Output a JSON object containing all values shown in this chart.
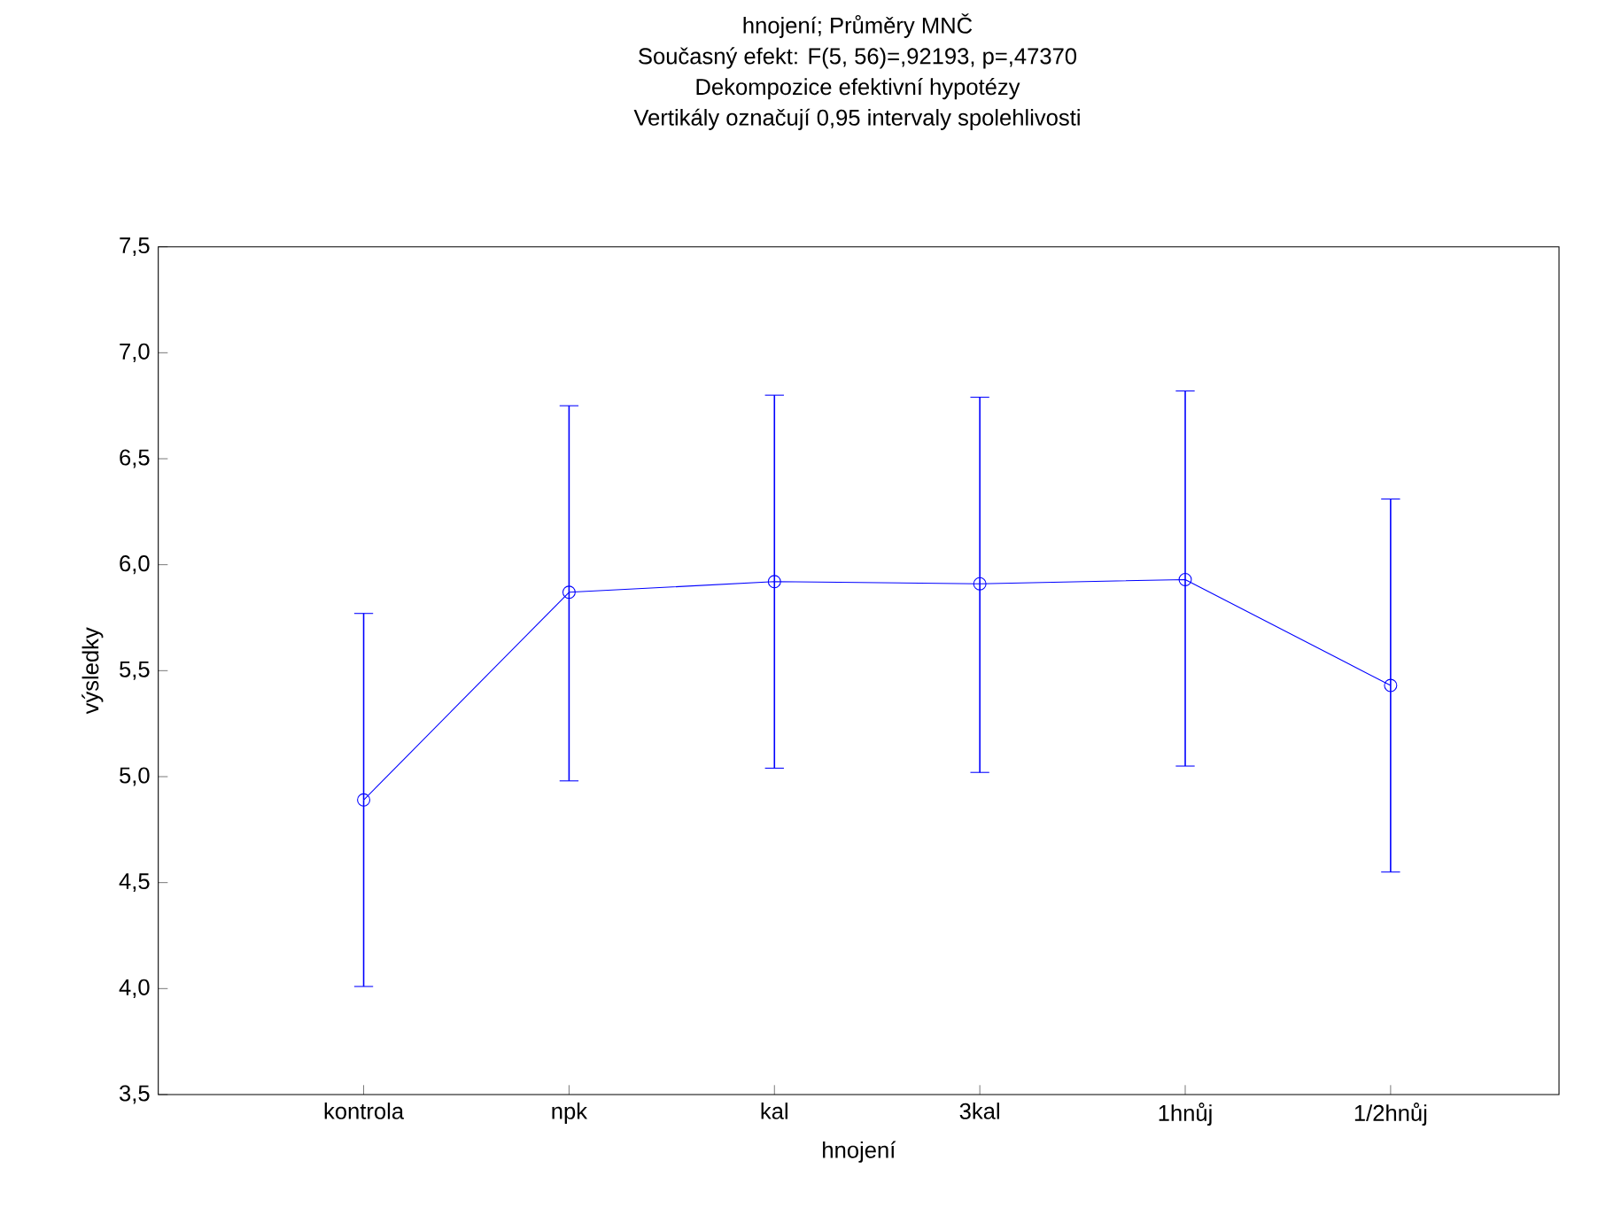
{
  "chart_data": {
    "type": "line",
    "title": "hnojení; Průměry MNČ",
    "subtitle": "Současný efekt: F(5, 56)=,92193, p=,47370",
    "annotations": [
      "Dekompozice efektivní hypotézy",
      "Vertikály označují 0,95 intervaly spolehlivosti"
    ],
    "xlabel": "hnojení",
    "ylabel": "výsledky",
    "categories": [
      "kontrola",
      "npk",
      "kal",
      "3kal",
      "1hnůj",
      "1/2hnůj"
    ],
    "series": [
      {
        "color": "#0000ff",
        "values": [
          4.89,
          5.87,
          5.92,
          5.91,
          5.93,
          5.43
        ],
        "errors": [
          [
            4.01,
            5.77
          ],
          [
            4.98,
            6.75
          ],
          [
            5.04,
            6.8
          ],
          [
            5.02,
            6.79
          ],
          [
            5.05,
            6.82
          ],
          [
            4.55,
            6.31
          ]
        ]
      }
    ],
    "ylim": [
      3.5,
      7.5
    ],
    "yticks": [
      {
        "value": 3.5,
        "label": "3,5"
      },
      {
        "value": 4.0,
        "label": "4,0"
      },
      {
        "value": 4.5,
        "label": "4,5"
      },
      {
        "value": 5.0,
        "label": "5,0"
      },
      {
        "value": 5.5,
        "label": "5,5"
      },
      {
        "value": 6.0,
        "label": "6,0"
      },
      {
        "value": 6.5,
        "label": "6,5"
      },
      {
        "value": 7.0,
        "label": "7,0"
      },
      {
        "value": 7.5,
        "label": "7,5"
      }
    ],
    "marker": "circle",
    "line_style": "solid"
  }
}
